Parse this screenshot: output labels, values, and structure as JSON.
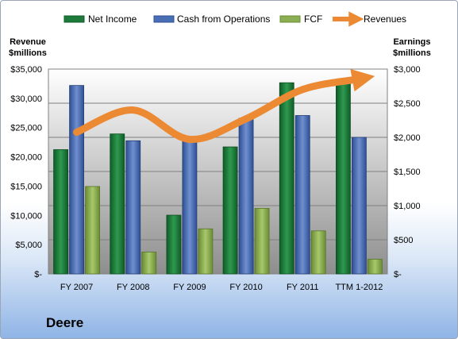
{
  "chart_data": {
    "type": "bar",
    "title": "",
    "categories": [
      "FY 2007",
      "FY 2008",
      "FY 2009",
      "FY 2010",
      "FY 2011",
      "TTM 1-2012"
    ],
    "series": [
      {
        "name": "Net Income",
        "axis": "right",
        "kind": "bar",
        "color": "#1e7a3a",
        "values": [
          1820,
          2050,
          860,
          1860,
          2800,
          2820
        ]
      },
      {
        "name": "Cash from Operations",
        "axis": "right",
        "kind": "bar",
        "color": "#4a6eb4",
        "values": [
          2760,
          1950,
          1980,
          2280,
          2320,
          2000
        ]
      },
      {
        "name": "FCF",
        "axis": "right",
        "kind": "bar",
        "color": "#8cae52",
        "values": [
          1280,
          320,
          660,
          960,
          630,
          215
        ]
      },
      {
        "name": "Revenues",
        "axis": "left",
        "kind": "line",
        "color": "#ec8a34",
        "values": [
          24200,
          28000,
          23000,
          26500,
          31500,
          33300
        ]
      }
    ],
    "left_axis": {
      "label_line1": "Revenue",
      "label_line2": "$millions",
      "range": [
        0,
        35000
      ],
      "ticks": [
        "$-",
        "$5,000",
        "$10,000",
        "$15,000",
        "$20,000",
        "$25,000",
        "$30,000",
        "$35,000"
      ]
    },
    "right_axis": {
      "label_line1": "Earnings",
      "label_line2": "$millions",
      "range": [
        0,
        3000
      ],
      "ticks": [
        "$-",
        "$500",
        "$1,000",
        "$1,500",
        "$2,000",
        "$2,500",
        "$3,000"
      ]
    },
    "grid": true,
    "legend_position": "top"
  },
  "company": "Deere"
}
